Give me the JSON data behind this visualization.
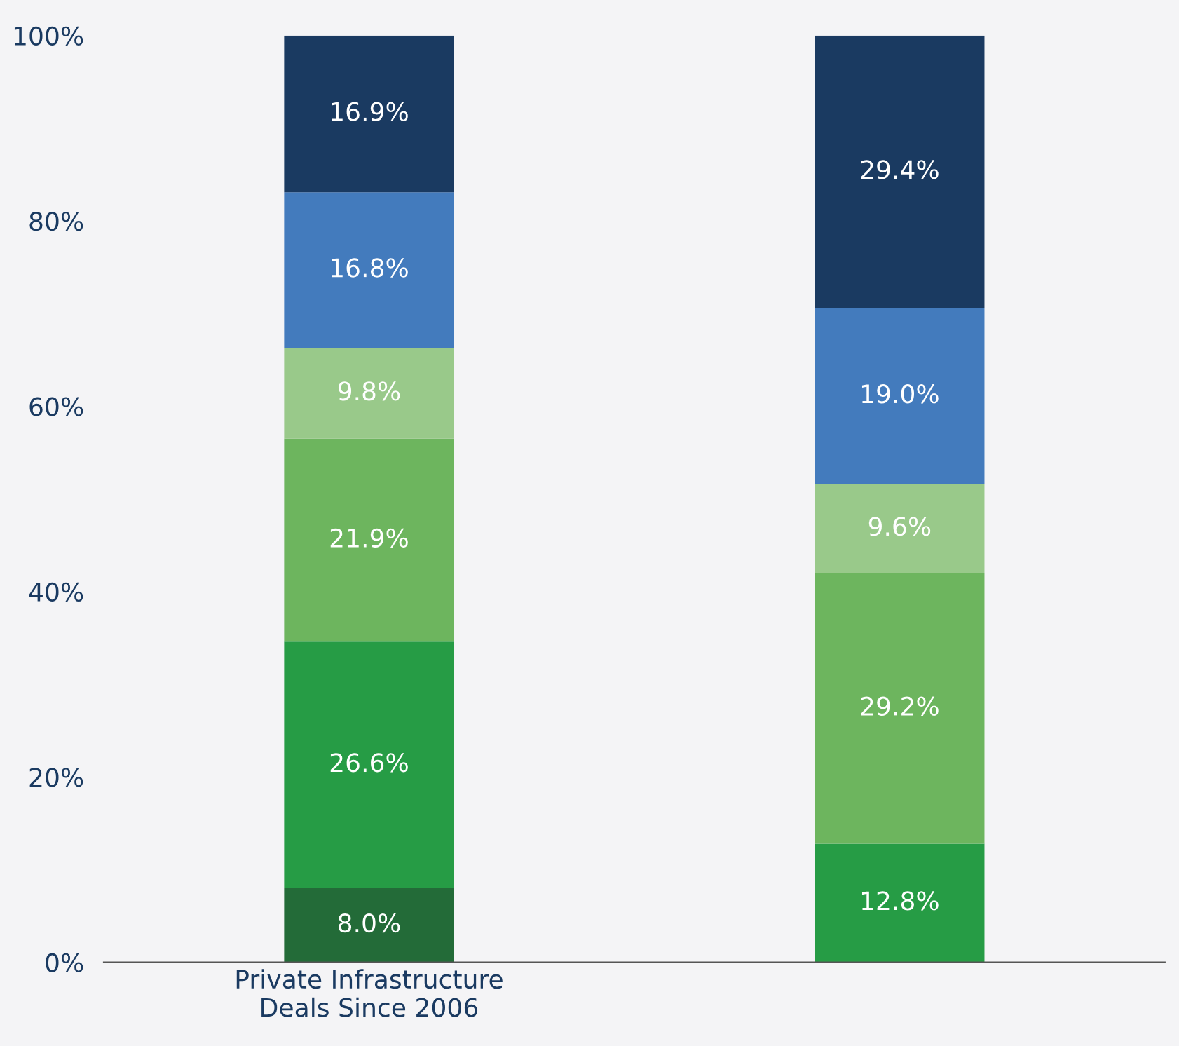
{
  "chart_data": {
    "type": "bar",
    "stacked": true,
    "categories": [
      "Private Infrastructure\nDeals Since 2006",
      null
    ],
    "series": [
      {
        "color": "#236b38",
        "values": [
          8.0,
          null
        ],
        "value_labels": [
          "8.0%",
          null
        ]
      },
      {
        "color": "#269c45",
        "values": [
          26.6,
          12.8
        ],
        "value_labels": [
          "26.6%",
          "12.8%"
        ]
      },
      {
        "color": "#6db55e",
        "values": [
          21.9,
          29.2
        ],
        "value_labels": [
          "21.9%",
          "29.2%"
        ]
      },
      {
        "color": "#99c98a",
        "values": [
          9.8,
          9.6
        ],
        "value_labels": [
          "9.8%",
          "9.6%"
        ]
      },
      {
        "color": "#437bbd",
        "values": [
          16.8,
          19.0
        ],
        "value_labels": [
          "16.8%",
          "19.0%"
        ]
      },
      {
        "color": "#1a3a61",
        "values": [
          16.9,
          29.4
        ],
        "value_labels": [
          "16.9%",
          "29.4%"
        ]
      }
    ],
    "ylim": [
      0,
      100
    ],
    "yticks": [
      {
        "value": 0,
        "label": "0%"
      },
      {
        "value": 20,
        "label": "20%"
      },
      {
        "value": 40,
        "label": "40%"
      },
      {
        "value": 60,
        "label": "60%"
      },
      {
        "value": 80,
        "label": "80%"
      },
      {
        "value": 100,
        "label": "100%"
      }
    ],
    "grid": false,
    "legend": false
  }
}
